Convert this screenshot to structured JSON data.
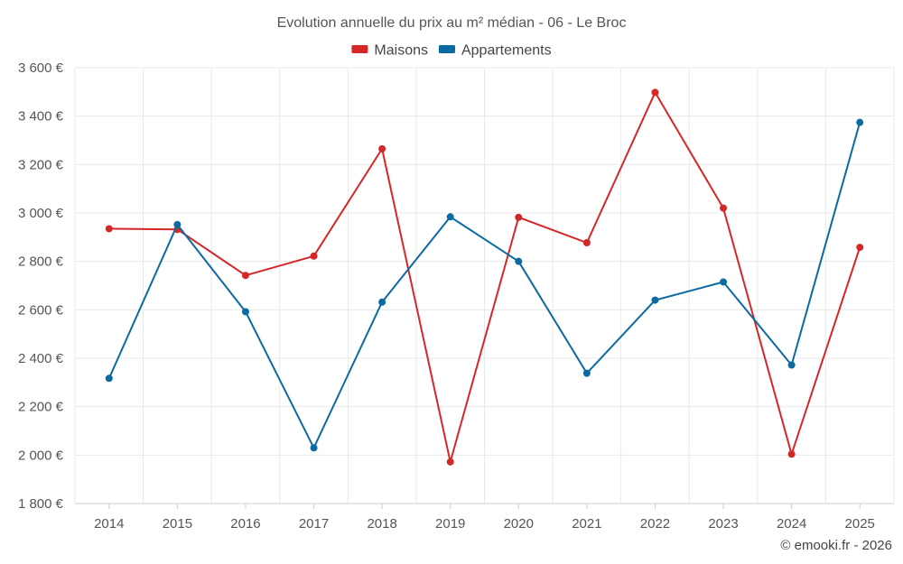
{
  "chart_data": {
    "type": "line",
    "title": "Evolution annuelle du prix au m² médian - 06 - Le Broc",
    "categories": [
      "2014",
      "2015",
      "2016",
      "2017",
      "2018",
      "2019",
      "2020",
      "2021",
      "2022",
      "2023",
      "2024",
      "2025"
    ],
    "series": [
      {
        "name": "Maisons",
        "color": "#d62728",
        "values": [
          2935,
          2932,
          2742,
          2822,
          3265,
          1972,
          2982,
          2877,
          3498,
          3020,
          2004,
          2858
        ]
      },
      {
        "name": "Appartements",
        "color": "#0b6aa2",
        "values": [
          2317,
          2952,
          2592,
          2030,
          2632,
          2984,
          2800,
          2338,
          2640,
          2715,
          2372,
          3374
        ]
      }
    ],
    "ylim": [
      1800,
      3600
    ],
    "yticks": [
      1800,
      2000,
      2200,
      2400,
      2600,
      2800,
      3000,
      3200,
      3400,
      3600
    ],
    "ytick_labels": [
      "1 800 €",
      "2 000 €",
      "2 200 €",
      "2 400 €",
      "2 600 €",
      "2 800 €",
      "3 000 €",
      "3 200 €",
      "3 400 €",
      "3 600 €"
    ],
    "xlabel": "",
    "ylabel": "",
    "grid": true,
    "legend_position": "top-center"
  },
  "credit": "© emooki.fr - 2026"
}
